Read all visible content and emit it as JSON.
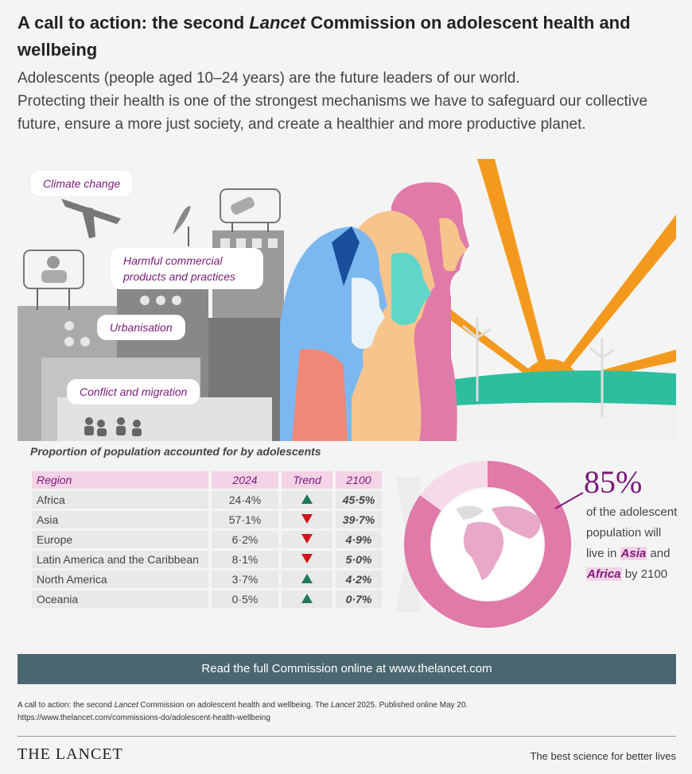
{
  "header": {
    "title_part1": "A call to action: the second ",
    "title_italic": "Lancet",
    "title_part2": " Commission on adolescent health and wellbeing",
    "intro_line1": "Adolescents (people aged 10–24 years) are the future leaders of our world.",
    "intro_line2": "Protecting their health is one of the strongest mechanisms we have to safeguard our collective future, ensure a more just society, and create a healthier and more productive planet."
  },
  "scene": {
    "tags": [
      "Climate change",
      "Harmful commercial products and practices",
      "Urbanisation",
      "Conflict and migration"
    ],
    "colors": {
      "sun": "#f39a1e",
      "sea": "#2bbf9e",
      "pink": "#e07aa8",
      "peach": "#f7c48c",
      "blue": "#7cb8f0",
      "teal": "#5fd6c8",
      "coral": "#f08878"
    }
  },
  "table": {
    "title": "Proportion of population accounted for by adolescents",
    "headers": [
      "Region",
      "2024",
      "Trend",
      "2100"
    ],
    "rows": [
      {
        "region": "Africa",
        "y2024": "24·4%",
        "trend": "up",
        "y2100": "45·5%"
      },
      {
        "region": "Asia",
        "y2024": "57·1%",
        "trend": "down",
        "y2100": "39·7%"
      },
      {
        "region": "Europe",
        "y2024": "6·2%",
        "trend": "down",
        "y2100": "4·9%"
      },
      {
        "region": "Latin America and the Caribbean",
        "y2024": "8·1%",
        "trend": "down",
        "y2100": "5·0%"
      },
      {
        "region": "North America",
        "y2024": "3·7%",
        "trend": "up",
        "y2100": "4·2%"
      },
      {
        "region": "Oceania",
        "y2024": "0·5%",
        "trend": "up",
        "y2100": "0·7%"
      }
    ],
    "colors": {
      "up": "#1e7a5a",
      "down": "#c0151a",
      "header_bg": "#f3d3e5"
    }
  },
  "stat": {
    "percent": "85%",
    "text_before": "of the adolescent population will live in ",
    "asia": "Asia",
    "and": " and ",
    "africa": "Africa",
    "text_after": " by 2100",
    "donut_fraction": 0.85,
    "color": "#e07aa8"
  },
  "footer": {
    "cta": "Read the full Commission online at www.thelancet.com",
    "cite_a": "A call to action: the second ",
    "cite_b": "Lancet",
    "cite_c": " Commission on adolescent health and wellbeing. The ",
    "cite_d": "Lancet",
    "cite_e": " 2025. Published online May 20.",
    "cite_url": "https://www.thelancet.com/commissions-do/adolescent-health-wellbeing",
    "logo": "THE LANCET",
    "tagline": "The best science for better lives"
  }
}
